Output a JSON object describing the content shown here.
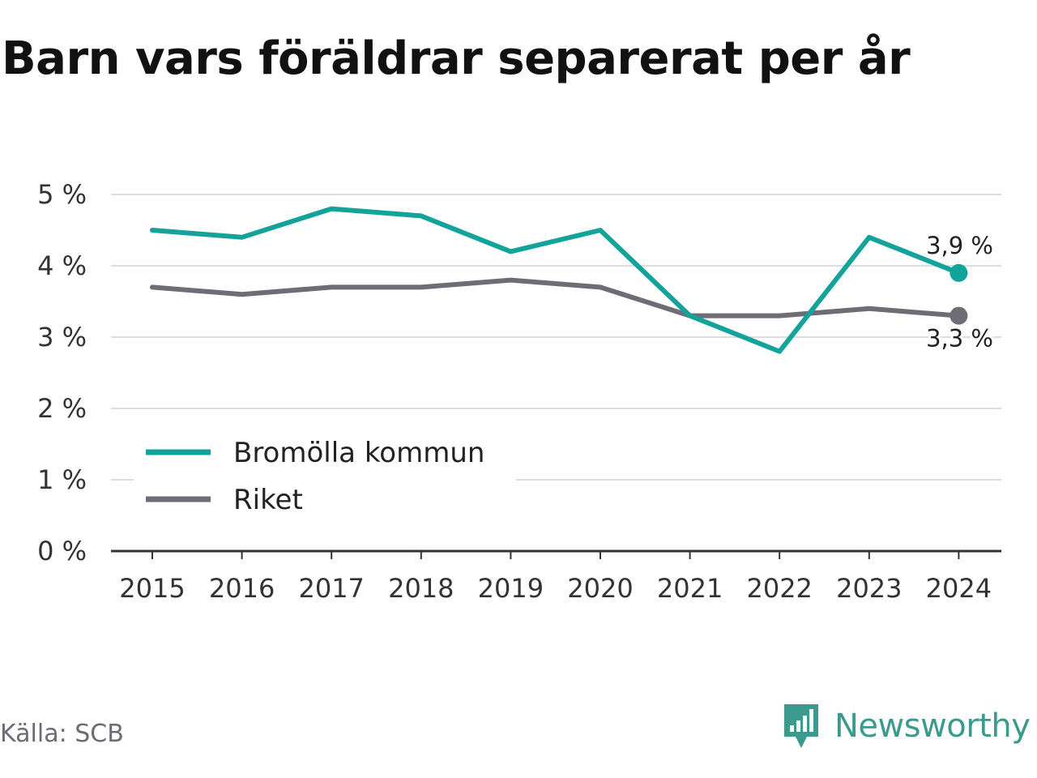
{
  "title": "Barn vars föräldrar separerat per år",
  "source": "Källa: SCB",
  "brand": {
    "name": "Newsworthy",
    "icon": "newsworthy-logo-icon",
    "color": "#3b9a8e"
  },
  "chart_data": {
    "type": "line",
    "title": "Barn vars föräldrar separerat per år",
    "x": [
      2015,
      2016,
      2017,
      2018,
      2019,
      2020,
      2021,
      2022,
      2023,
      2024
    ],
    "x_tick_labels": [
      "2015",
      "2016",
      "2017",
      "2018",
      "2019",
      "2020",
      "2021",
      "2022",
      "2023",
      "2024"
    ],
    "y_ticks": [
      0,
      1,
      2,
      3,
      4,
      5
    ],
    "y_tick_labels": [
      "0 %",
      "1 %",
      "2 %",
      "3 %",
      "4 %",
      "5 %"
    ],
    "ylim": [
      0,
      5
    ],
    "xlabel": "",
    "ylabel": "",
    "grid": true,
    "legend_position": "bottom-left",
    "series": [
      {
        "name": "Bromölla kommun",
        "color": "#14a39a",
        "values": [
          4.5,
          4.4,
          4.8,
          4.7,
          4.2,
          4.5,
          3.3,
          2.8,
          4.4,
          3.9
        ],
        "end_label": "3,9 %"
      },
      {
        "name": "Riket",
        "color": "#6e6d75",
        "values": [
          3.7,
          3.6,
          3.7,
          3.7,
          3.8,
          3.7,
          3.3,
          3.3,
          3.4,
          3.3
        ],
        "end_label": "3,3 %"
      }
    ]
  }
}
